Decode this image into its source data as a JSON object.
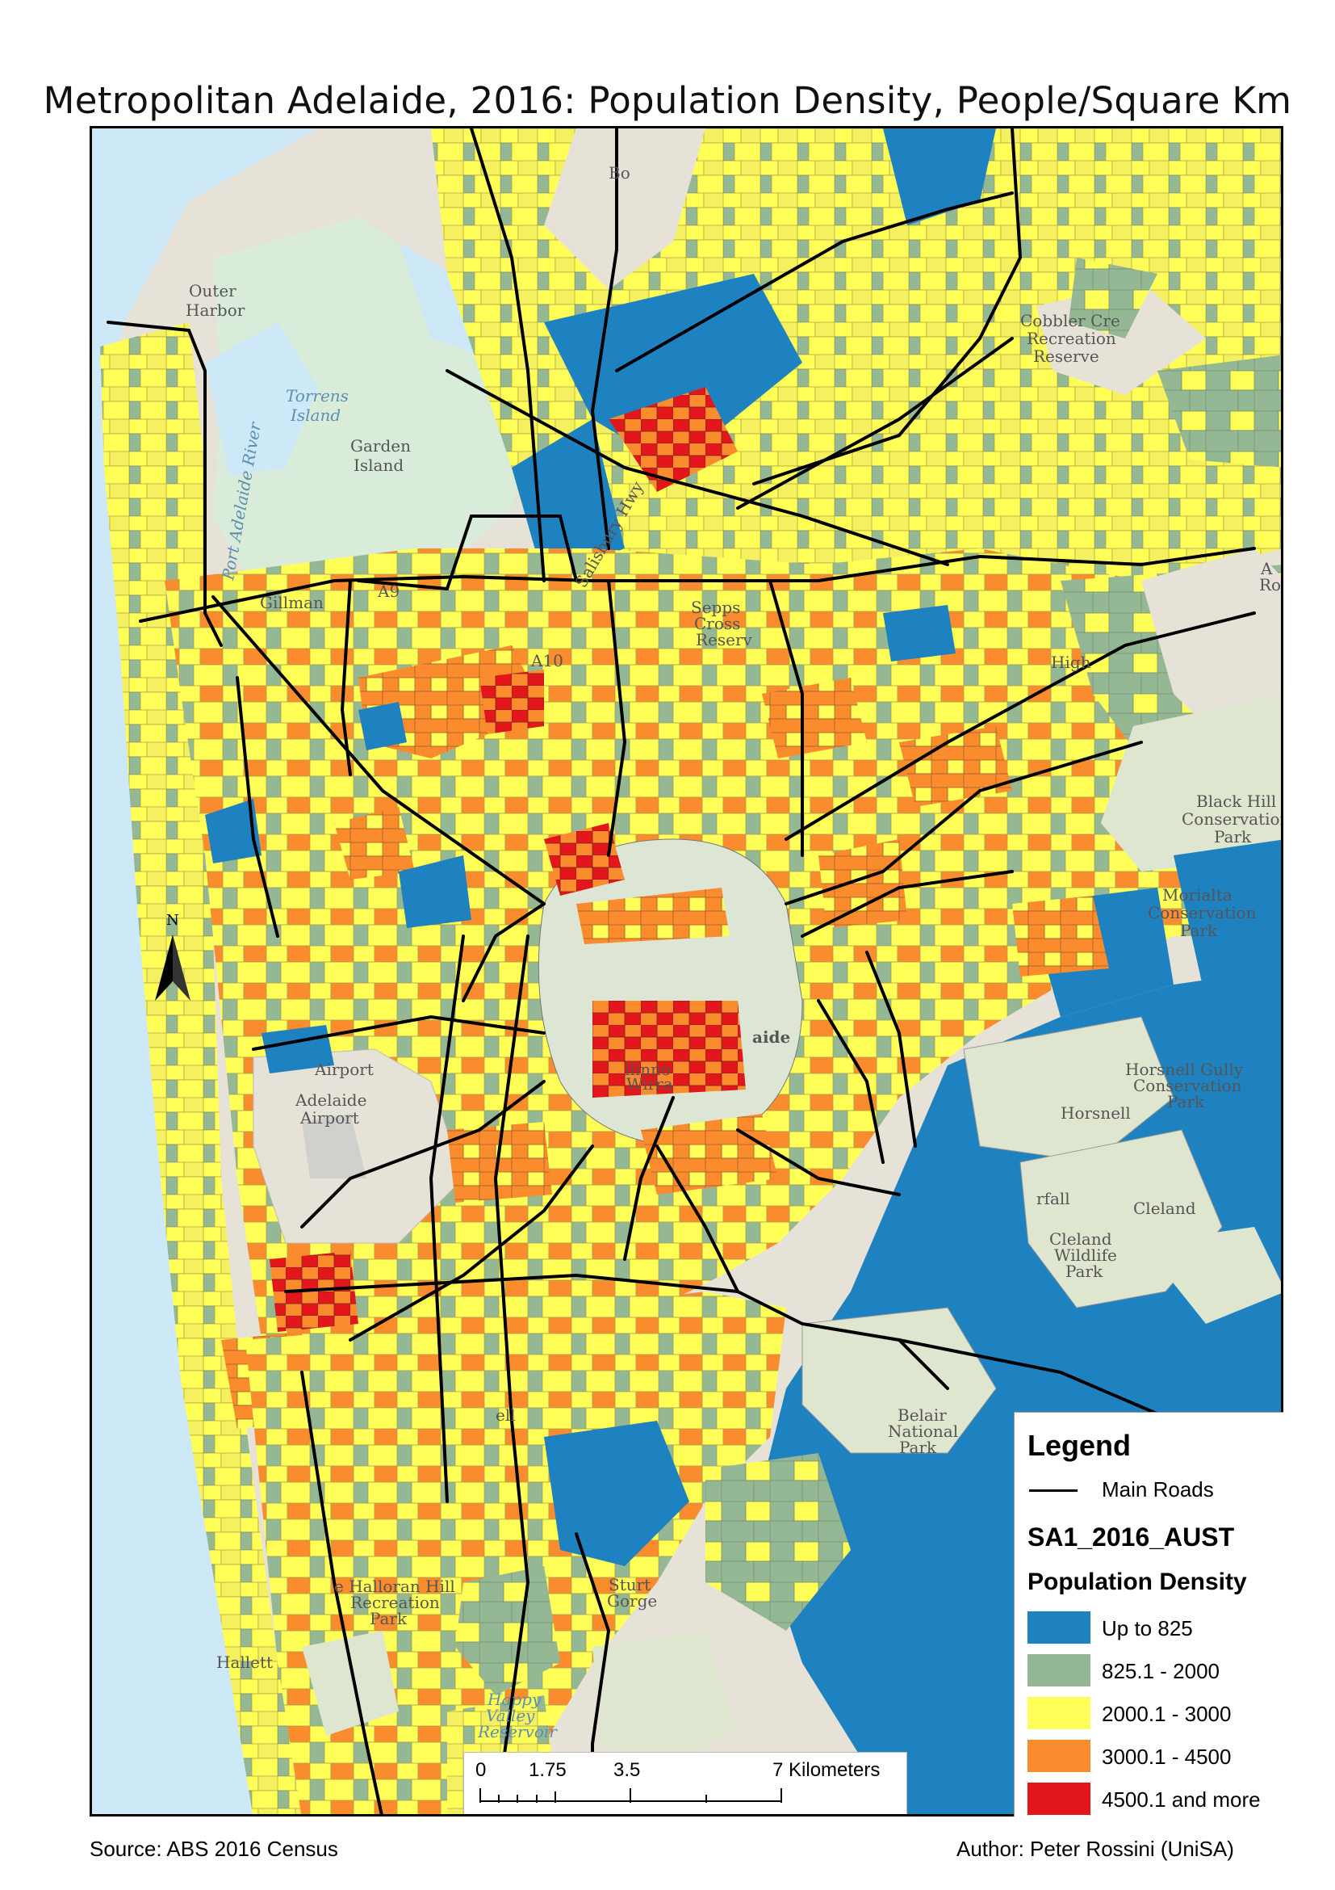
{
  "title": "Metropolitan Adelaide, 2016: Population Density, People/Square Km",
  "map": {
    "place_labels": {
      "outer_harbor_1": "Outer",
      "outer_harbor_2": "Harbor",
      "torrens_island_1": "Torrens",
      "torrens_island_2": "Island",
      "garden_island_1": "Garden",
      "garden_island_2": "Island",
      "port_adelaide_river": "Port Adelaide River",
      "gillman": "Gillman",
      "a9": "A9",
      "a10": "A10",
      "salisbury_hwy": "Salisbury Hwy",
      "bo": "Bo",
      "cobbler_1": "Cobbler Cre",
      "cobbler_2": "Recreation",
      "cobbler_3": "Reserve",
      "a_right_1": "A",
      "a_right_2": "Ro",
      "sepps_1": "Sepps",
      "sepps_2": "Cross",
      "sepps_3": "Reserv",
      "high": "High",
      "black_hill_1": "Black Hill",
      "black_hill_2": "Conservation",
      "black_hill_3": "Park",
      "morialta_1": "Morialta",
      "morialta_2": "Conservation",
      "morialta_3": "Park",
      "adelaide_partial": "aide",
      "airport": "Airport",
      "adelaide_airport_1": "Adelaide",
      "adelaide_airport_2": "Airport",
      "horsnell_gully_1": "Horsnell Gully",
      "horsnell_gully_2": "Conservation",
      "horsnell_gully_3": "Park",
      "horsnell": "Horsnell",
      "cleland": "Cleland",
      "cleland_wildlife_1": "Cleland",
      "cleland_wildlife_2": "Wildlife",
      "cleland_wildlife_3": "Park",
      "rfall": "rfall",
      "belair_1": "Belair",
      "belair_2": "National",
      "belair_3": "Park",
      "sturt_1": "Sturt",
      "sturt_2": "Gorge",
      "halloran_1": "e Halloran Hill",
      "halloran_2": "Recreation",
      "halloran_3": "Park",
      "hallett": "Hallett",
      "happy_valley_1": "Happy",
      "happy_valley_2": "Valley",
      "happy_valley_3": "Reservoir",
      "ell": "ell",
      "ilinno": "ilinno",
      "wirra": "Wirra",
      "north": "N"
    }
  },
  "legend": {
    "title": "Legend",
    "roads_label": "Main Roads",
    "layer_name": "SA1_2016_AUST",
    "field_name": "Population Density",
    "classes": [
      {
        "label": "Up to 825",
        "color": "#1f82c0"
      },
      {
        "label": "825.1 - 2000",
        "color": "#94b894"
      },
      {
        "label": "2000.1 - 3000",
        "color": "#ffff57"
      },
      {
        "label": "3000.1 - 4500",
        "color": "#fb8c2e"
      },
      {
        "label": "4500.1 and more",
        "color": "#e3171b"
      }
    ]
  },
  "scale_bar": {
    "labels": [
      "0",
      "1.75",
      "3.5",
      "7 Kilometers"
    ]
  },
  "footer": {
    "source": "Source: ABS 2016 Census",
    "author": "Author: Peter Rossini (UniSA)"
  }
}
